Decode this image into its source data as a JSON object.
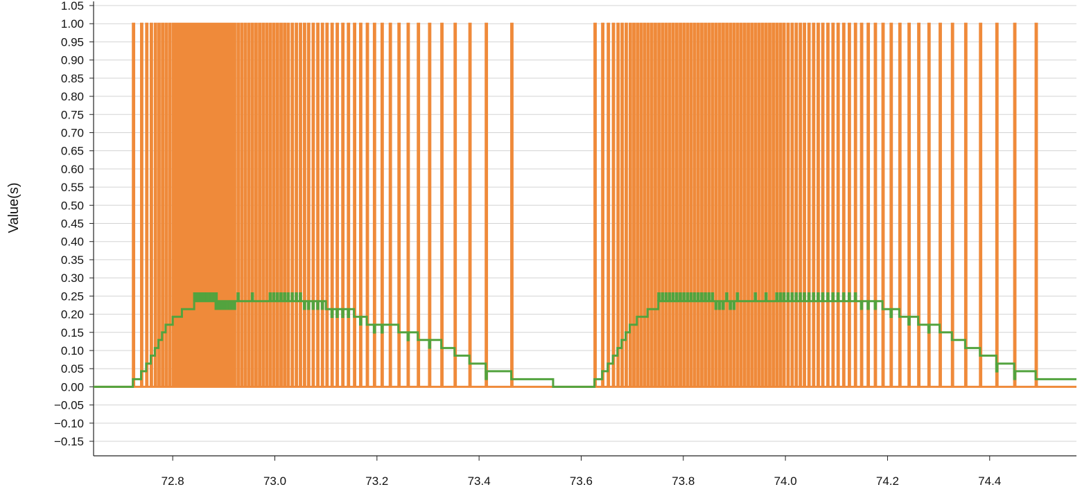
{
  "chart_data": {
    "type": "line",
    "title": "",
    "xlabel": "",
    "ylabel": "Value(s)",
    "xlim": [
      72.645,
      74.57
    ],
    "ylim": [
      -0.19,
      1.05
    ],
    "grid": true,
    "legend": "none",
    "x_ticks": [
      "72.8",
      "73.0",
      "73.2",
      "73.4",
      "73.6",
      "73.8",
      "74.0",
      "74.2",
      "74.4"
    ],
    "y_ticks": [
      "1.05",
      "1.00",
      "0.95",
      "0.90",
      "0.85",
      "0.80",
      "0.75",
      "0.70",
      "0.65",
      "0.60",
      "0.55",
      "0.50",
      "0.45",
      "0.40",
      "0.35",
      "0.30",
      "0.25",
      "0.20",
      "0.15",
      "0.10",
      "0.05",
      "0.00",
      "−0.05",
      "−0.10",
      "−0.15"
    ],
    "series": [
      {
        "color": "#ef8a3a",
        "style": "pulse-train",
        "baseline": 0.0,
        "peak": 1.0,
        "pulse_x": [
          72.722,
          72.738,
          72.748,
          72.757,
          72.765,
          72.772,
          72.779,
          72.786,
          72.793,
          72.8,
          72.806,
          72.812,
          72.818,
          72.824,
          72.83,
          72.836,
          72.842,
          72.848,
          72.854,
          72.86,
          72.866,
          72.872,
          72.878,
          72.884,
          72.89,
          72.896,
          72.902,
          72.908,
          72.914,
          72.92,
          72.927,
          72.934,
          72.941,
          72.948,
          72.955,
          72.962,
          72.969,
          72.976,
          72.983,
          72.99,
          72.997,
          73.004,
          73.011,
          73.018,
          73.025,
          73.033,
          73.041,
          73.049,
          73.057,
          73.065,
          73.074,
          73.083,
          73.092,
          73.101,
          73.111,
          73.121,
          73.132,
          73.143,
          73.155,
          73.167,
          73.18,
          73.194,
          73.209,
          73.225,
          73.242,
          73.26,
          73.28,
          73.302,
          73.326,
          73.352,
          73.381,
          73.413,
          73.463,
          73.626,
          73.641,
          73.652,
          73.662,
          73.671,
          73.679,
          73.687,
          73.695,
          73.702,
          73.709,
          73.716,
          73.723,
          73.73,
          73.737,
          73.744,
          73.751,
          73.758,
          73.765,
          73.772,
          73.779,
          73.786,
          73.793,
          73.8,
          73.807,
          73.814,
          73.821,
          73.828,
          73.835,
          73.842,
          73.849,
          73.856,
          73.863,
          73.87,
          73.877,
          73.884,
          73.891,
          73.898,
          73.905,
          73.912,
          73.919,
          73.926,
          73.933,
          73.94,
          73.947,
          73.954,
          73.961,
          73.968,
          73.975,
          73.982,
          73.989,
          73.996,
          74.004,
          74.012,
          74.02,
          74.028,
          74.036,
          74.045,
          74.054,
          74.063,
          74.072,
          74.082,
          74.092,
          74.102,
          74.113,
          74.124,
          74.136,
          74.148,
          74.161,
          74.175,
          74.19,
          74.206,
          74.223,
          74.241,
          74.26,
          74.28,
          74.302,
          74.326,
          74.352,
          74.381,
          74.413,
          74.448,
          74.49
        ]
      },
      {
        "color": "#52a33e",
        "style": "step",
        "points": [
          [
            72.645,
            0.0
          ],
          [
            72.722,
            0.0
          ],
          [
            72.722,
            0.021
          ],
          [
            72.738,
            0.021
          ],
          [
            72.738,
            0.043
          ],
          [
            72.748,
            0.043
          ],
          [
            72.748,
            0.064
          ],
          [
            72.757,
            0.064
          ],
          [
            72.757,
            0.086
          ],
          [
            72.765,
            0.086
          ],
          [
            72.765,
            0.107
          ],
          [
            72.772,
            0.107
          ],
          [
            72.772,
            0.129
          ],
          [
            72.779,
            0.129
          ],
          [
            72.779,
            0.15
          ],
          [
            72.786,
            0.15
          ],
          [
            72.786,
            0.171
          ],
          [
            72.8,
            0.171
          ],
          [
            72.8,
            0.193
          ],
          [
            72.818,
            0.193
          ],
          [
            72.818,
            0.214
          ],
          [
            72.842,
            0.214
          ],
          [
            72.842,
            0.236
          ],
          [
            73.1,
            0.236
          ],
          [
            73.1,
            0.214
          ],
          [
            73.155,
            0.214
          ],
          [
            73.155,
            0.193
          ],
          [
            73.18,
            0.193
          ],
          [
            73.18,
            0.171
          ],
          [
            73.242,
            0.171
          ],
          [
            73.242,
            0.15
          ],
          [
            73.28,
            0.15
          ],
          [
            73.28,
            0.129
          ],
          [
            73.326,
            0.129
          ],
          [
            73.326,
            0.107
          ],
          [
            73.352,
            0.107
          ],
          [
            73.352,
            0.086
          ],
          [
            73.381,
            0.086
          ],
          [
            73.381,
            0.064
          ],
          [
            73.413,
            0.064
          ],
          [
            73.413,
            0.043
          ],
          [
            73.463,
            0.043
          ],
          [
            73.463,
            0.021
          ],
          [
            73.545,
            0.021
          ],
          [
            73.545,
            0.0
          ],
          [
            73.626,
            0.0
          ],
          [
            73.626,
            0.021
          ],
          [
            73.641,
            0.021
          ],
          [
            73.641,
            0.043
          ],
          [
            73.652,
            0.043
          ],
          [
            73.652,
            0.064
          ],
          [
            73.662,
            0.064
          ],
          [
            73.662,
            0.086
          ],
          [
            73.671,
            0.086
          ],
          [
            73.671,
            0.107
          ],
          [
            73.679,
            0.107
          ],
          [
            73.679,
            0.129
          ],
          [
            73.687,
            0.129
          ],
          [
            73.687,
            0.15
          ],
          [
            73.695,
            0.15
          ],
          [
            73.695,
            0.171
          ],
          [
            73.709,
            0.171
          ],
          [
            73.709,
            0.193
          ],
          [
            73.73,
            0.193
          ],
          [
            73.73,
            0.214
          ],
          [
            73.751,
            0.214
          ],
          [
            73.751,
            0.236
          ],
          [
            74.19,
            0.236
          ],
          [
            74.19,
            0.214
          ],
          [
            74.223,
            0.214
          ],
          [
            74.223,
            0.193
          ],
          [
            74.26,
            0.193
          ],
          [
            74.26,
            0.171
          ],
          [
            74.302,
            0.171
          ],
          [
            74.302,
            0.15
          ],
          [
            74.326,
            0.15
          ],
          [
            74.326,
            0.129
          ],
          [
            74.352,
            0.129
          ],
          [
            74.352,
            0.107
          ],
          [
            74.381,
            0.107
          ],
          [
            74.381,
            0.086
          ],
          [
            74.413,
            0.086
          ],
          [
            74.413,
            0.064
          ],
          [
            74.448,
            0.064
          ],
          [
            74.448,
            0.043
          ],
          [
            74.49,
            0.043
          ],
          [
            74.49,
            0.021
          ],
          [
            74.57,
            0.021
          ]
        ],
        "spike_x": [
          72.842,
          72.848,
          72.854,
          72.86,
          72.866,
          72.872,
          72.878,
          72.884,
          72.927,
          72.955,
          72.99,
          72.997,
          73.004,
          73.011,
          73.018,
          73.025,
          73.033,
          73.041,
          73.049,
          73.751,
          73.758,
          73.765,
          73.772,
          73.779,
          73.786,
          73.793,
          73.8,
          73.807,
          73.814,
          73.821,
          73.828,
          73.835,
          73.842,
          73.849,
          73.856,
          73.884,
          73.905,
          73.94,
          73.961,
          73.982,
          73.989,
          73.996,
          74.004,
          74.012,
          74.02,
          74.028,
          74.036,
          74.045,
          74.054,
          74.063,
          74.072,
          74.082,
          74.092,
          74.102,
          74.113,
          74.124,
          74.136
        ],
        "dip_x": [
          72.884,
          72.89,
          72.896,
          72.902,
          72.908,
          72.914,
          72.92,
          73.057,
          73.065,
          73.074,
          73.083,
          73.092,
          73.111,
          73.121,
          73.132,
          73.143,
          73.167,
          73.194,
          73.209,
          73.26,
          73.302,
          73.413,
          73.863,
          73.87,
          73.877,
          73.891,
          73.898,
          74.148,
          74.161,
          74.175,
          74.206,
          74.241,
          74.28,
          74.413,
          74.448
        ]
      }
    ]
  }
}
